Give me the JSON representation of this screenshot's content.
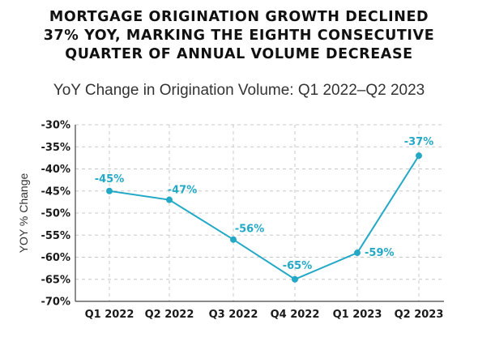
{
  "chart_data": {
    "type": "line",
    "title_lines": [
      "MORTGAGE ORIGINATION GROWTH DECLINED",
      "37% YOY, MARKING THE EIGHTH CONSECUTIVE",
      "QUARTER OF ANNUAL VOLUME DECREASE"
    ],
    "subtitle": "YoY Change in Origination Volume: Q1 2022–Q2 2023",
    "ylabel": "YOY % Change",
    "xlabel": "",
    "categories": [
      "Q1 2022",
      "Q2 2022",
      "Q3 2022",
      "Q4 2022",
      "Q1 2023",
      "Q2 2023"
    ],
    "values": [
      -45,
      -47,
      -56,
      -65,
      -59,
      -37
    ],
    "data_labels": [
      "-45%",
      "-47%",
      "-56%",
      "-65%",
      "-59%",
      "-37%"
    ],
    "ylim": [
      -70,
      -30
    ],
    "yticks": [
      -30,
      -35,
      -40,
      -45,
      -50,
      -55,
      -60,
      -65,
      -70
    ],
    "ytick_labels": [
      "-30%",
      "-35%",
      "-40%",
      "-45%",
      "-50%",
      "-55%",
      "-60%",
      "-65%",
      "-70%"
    ],
    "grid": "dashed",
    "line_color": "#23a9c6"
  }
}
